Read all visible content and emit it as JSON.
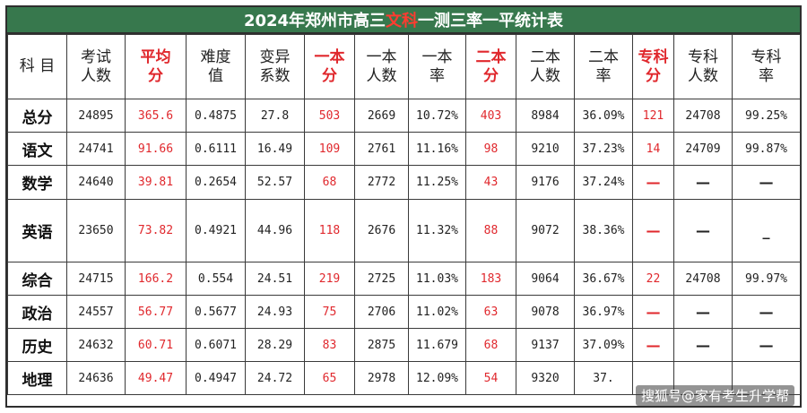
{
  "title": {
    "before": "2024年郑州市高三",
    "highlight": "文科",
    "after": "一测三率一平统计表"
  },
  "colors": {
    "header_bg": "#37784d",
    "accent_red": "#e0282d"
  },
  "columns": [
    {
      "lines": [
        "科 目"
      ],
      "red": false
    },
    {
      "lines": [
        "考试",
        "人数"
      ],
      "red": false
    },
    {
      "lines": [
        "平均",
        "分"
      ],
      "red": true
    },
    {
      "lines": [
        "难度",
        "值"
      ],
      "red": false
    },
    {
      "lines": [
        "变异",
        "系数"
      ],
      "red": false
    },
    {
      "lines": [
        "一本",
        "分"
      ],
      "red": true
    },
    {
      "lines": [
        "一本",
        "人数"
      ],
      "red": false
    },
    {
      "lines": [
        "一本",
        "率"
      ],
      "red": false
    },
    {
      "lines": [
        "二本",
        "分"
      ],
      "red": true
    },
    {
      "lines": [
        "二本",
        "人数"
      ],
      "red": false
    },
    {
      "lines": [
        "二本",
        "率"
      ],
      "red": false
    },
    {
      "lines": [
        "专科",
        "分"
      ],
      "red": true
    },
    {
      "lines": [
        "专科",
        "人数"
      ],
      "red": false
    },
    {
      "lines": [
        "专科",
        "率"
      ],
      "red": false
    }
  ],
  "rows": [
    {
      "subject": "总分",
      "cells": [
        "24895",
        "365.6",
        "0.4875",
        "27.8",
        "503",
        "2669",
        "10.72%",
        "403",
        "8984",
        "36.09%",
        "121",
        "24708",
        "99.25%"
      ]
    },
    {
      "subject": "语文",
      "cells": [
        "24741",
        "91.66",
        "0.6111",
        "16.49",
        "109",
        "2761",
        "11.16%",
        "98",
        "9210",
        "37.23%",
        "14",
        "24709",
        "99.87%"
      ]
    },
    {
      "subject": "数学",
      "cells": [
        "24640",
        "39.81",
        "0.2654",
        "52.57",
        "68",
        "2772",
        "11.25%",
        "43",
        "9176",
        "37.24%",
        "—",
        "—",
        "—"
      ]
    },
    {
      "subject": "英语",
      "cells": [
        "23650",
        "73.82",
        "0.4921",
        "44.96",
        "118",
        "2676",
        "11.32%",
        "88",
        "9072",
        "38.36%",
        "—",
        "—",
        "_"
      ]
    },
    {
      "subject": "综合",
      "cells": [
        "24715",
        "166.2",
        "0.554",
        "24.51",
        "219",
        "2725",
        "11.03%",
        "183",
        "9064",
        "36.67%",
        "22",
        "24708",
        "99.97%"
      ]
    },
    {
      "subject": "政治",
      "cells": [
        "24557",
        "56.77",
        "0.5677",
        "24.93",
        "75",
        "2706",
        "11.02%",
        "63",
        "9078",
        "36.97%",
        "—",
        "—",
        "—"
      ]
    },
    {
      "subject": "历史",
      "cells": [
        "24632",
        "60.71",
        "0.6071",
        "28.29",
        "83",
        "2875",
        "11.679",
        "68",
        "9137",
        "37.09%",
        "—",
        "—",
        "—"
      ]
    },
    {
      "subject": "地理",
      "cells": [
        "24636",
        "49.47",
        "0.4947",
        "24.72",
        "65",
        "2978",
        "12.09%",
        "54",
        "9320",
        "37.",
        "",
        "",
        ""
      ]
    }
  ],
  "watermark": "搜狐号@家有考生升学帮"
}
